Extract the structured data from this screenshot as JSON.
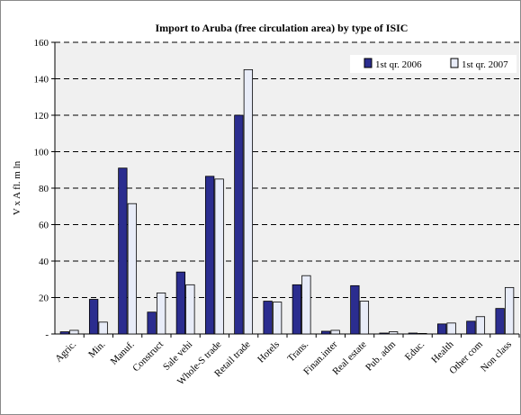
{
  "chart_data": {
    "type": "bar",
    "title": "Import to Aruba (free circulation area) by type of ISIC",
    "xlabel": "",
    "ylabel": "V x A fl. m ln",
    "ylim": [
      0,
      160
    ],
    "yticks": [
      0,
      20,
      40,
      60,
      80,
      100,
      120,
      140,
      160
    ],
    "ytick_labels": [
      "-",
      "20",
      "40",
      "60",
      "80",
      "100",
      "120",
      "140",
      "160"
    ],
    "grid": true,
    "legend_position": "top-right",
    "categories": [
      "Agric.",
      "Min.",
      "Manuf.",
      "Construct",
      "Sale vehi",
      "Whole-S trade",
      "Retail trade",
      "Hotels",
      "Trans.",
      "Finan.inter",
      "Real estate",
      "Pub. adm",
      "Educ.",
      "Health",
      "Other com",
      "Non class"
    ],
    "series": [
      {
        "name": "1st qr. 2006",
        "color": "#2b2d8f",
        "values": [
          1.2,
          19,
          91,
          12,
          34,
          86.5,
          120,
          18,
          27,
          1.5,
          26.5,
          0.5,
          0.5,
          5.5,
          7,
          14
        ]
      },
      {
        "name": "1st qr. 2007",
        "color": "#e8ecf8",
        "values": [
          2,
          6.5,
          71.5,
          22.5,
          27,
          85,
          145,
          17.5,
          32,
          2,
          18,
          1.2,
          0.3,
          6,
          9.5,
          25.5
        ]
      }
    ]
  }
}
